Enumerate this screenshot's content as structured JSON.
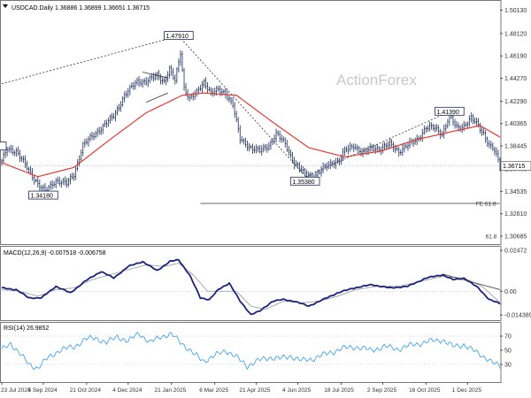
{
  "chart_data": [
    {
      "type": "line",
      "panel": "price",
      "header": "USDCAD.Daily  1.36886 1.36899 1.36651 1.36715",
      "watermark": "ActionForex",
      "ylim": [
        1.3,
        1.51
      ],
      "y_ticks": [
        1.5013,
        1.4812,
        1.4619,
        1.4427,
        1.4229,
        1.4037,
        1.3845,
        1.3646,
        1.3454,
        1.3261,
        1.3069
      ],
      "y_tick_labels": [
        "1.50130",
        "1.48120",
        "1.46190",
        "1.44270",
        "1.42290",
        "1.40365",
        "1.38445",
        "1.36460",
        "1.34535",
        "1.32610",
        "1.30685"
      ],
      "current_price": 1.36715,
      "current_price_label": "1.36715",
      "x_ticks": [
        "23 Jul 2024",
        "5 Sep 2024",
        "21 Oct 2024",
        "4 Dec 2024",
        "21 Jan 2025",
        "6 Mar 2025",
        "21 Apr 2025",
        "4 Jun 2025",
        "18 Jul 2025",
        "2 Sep 2025",
        "16 Oct 2025",
        "1 Dec 2025"
      ],
      "close_anchors": [
        {
          "i": 0,
          "v": 1.371
        },
        {
          "i": 3,
          "v": 1.382
        },
        {
          "i": 8,
          "v": 1.38
        },
        {
          "i": 13,
          "v": 1.368
        },
        {
          "i": 20,
          "v": 1.352
        },
        {
          "i": 24,
          "v": 1.345
        },
        {
          "i": 30,
          "v": 1.355
        },
        {
          "i": 36,
          "v": 1.352
        },
        {
          "i": 40,
          "v": 1.36
        },
        {
          "i": 45,
          "v": 1.385
        },
        {
          "i": 55,
          "v": 1.4
        },
        {
          "i": 62,
          "v": 1.41
        },
        {
          "i": 68,
          "v": 1.428
        },
        {
          "i": 75,
          "v": 1.44
        },
        {
          "i": 80,
          "v": 1.44
        },
        {
          "i": 86,
          "v": 1.445
        },
        {
          "i": 90,
          "v": 1.44
        },
        {
          "i": 93,
          "v": 1.45
        },
        {
          "i": 96,
          "v": 1.44
        },
        {
          "i": 99,
          "v": 1.465
        },
        {
          "i": 101,
          "v": 1.435
        },
        {
          "i": 104,
          "v": 1.425
        },
        {
          "i": 108,
          "v": 1.43
        },
        {
          "i": 112,
          "v": 1.44
        },
        {
          "i": 116,
          "v": 1.43
        },
        {
          "i": 120,
          "v": 1.432
        },
        {
          "i": 124,
          "v": 1.43
        },
        {
          "i": 128,
          "v": 1.42
        },
        {
          "i": 132,
          "v": 1.39
        },
        {
          "i": 138,
          "v": 1.383
        },
        {
          "i": 143,
          "v": 1.38
        },
        {
          "i": 148,
          "v": 1.385
        },
        {
          "i": 152,
          "v": 1.395
        },
        {
          "i": 157,
          "v": 1.386
        },
        {
          "i": 162,
          "v": 1.37
        },
        {
          "i": 168,
          "v": 1.36
        },
        {
          "i": 173,
          "v": 1.358
        },
        {
          "i": 178,
          "v": 1.365
        },
        {
          "i": 183,
          "v": 1.37
        },
        {
          "i": 187,
          "v": 1.372
        },
        {
          "i": 190,
          "v": 1.38
        },
        {
          "i": 195,
          "v": 1.385
        },
        {
          "i": 200,
          "v": 1.378
        },
        {
          "i": 205,
          "v": 1.383
        },
        {
          "i": 210,
          "v": 1.382
        },
        {
          "i": 215,
          "v": 1.386
        },
        {
          "i": 220,
          "v": 1.38
        },
        {
          "i": 225,
          "v": 1.385
        },
        {
          "i": 230,
          "v": 1.39
        },
        {
          "i": 235,
          "v": 1.4
        },
        {
          "i": 240,
          "v": 1.4
        },
        {
          "i": 244,
          "v": 1.395
        },
        {
          "i": 248,
          "v": 1.41
        },
        {
          "i": 252,
          "v": 1.4
        },
        {
          "i": 256,
          "v": 1.402
        },
        {
          "i": 260,
          "v": 1.408
        },
        {
          "i": 264,
          "v": 1.402
        },
        {
          "i": 267,
          "v": 1.395
        },
        {
          "i": 270,
          "v": 1.385
        },
        {
          "i": 273,
          "v": 1.38
        },
        {
          "i": 276,
          "v": 1.3672
        }
      ],
      "series": [
        {
          "name": "SMA",
          "color": "#e53935",
          "anchors": [
            {
              "i": 0,
              "v": 1.37
            },
            {
              "i": 20,
              "v": 1.358
            },
            {
              "i": 40,
              "v": 1.366
            },
            {
              "i": 60,
              "v": 1.39
            },
            {
              "i": 80,
              "v": 1.413
            },
            {
              "i": 100,
              "v": 1.428
            },
            {
              "i": 112,
              "v": 1.43
            },
            {
              "i": 130,
              "v": 1.428
            },
            {
              "i": 150,
              "v": 1.405
            },
            {
              "i": 170,
              "v": 1.383
            },
            {
              "i": 190,
              "v": 1.375
            },
            {
              "i": 210,
              "v": 1.38
            },
            {
              "i": 230,
              "v": 1.39
            },
            {
              "i": 250,
              "v": 1.397
            },
            {
              "i": 265,
              "v": 1.402
            },
            {
              "i": 276,
              "v": 1.392
            }
          ]
        }
      ],
      "annotations": [
        {
          "text": "1.47910",
          "i": 98,
          "v": 1.4791
        },
        {
          "text": "1.34180",
          "i": 23,
          "v": 1.3418
        },
        {
          "text": "1.35380",
          "i": 168,
          "v": 1.3538
        },
        {
          "text": "1.41390",
          "i": 248,
          "v": 1.4139
        },
        {
          "text": "FE 61.8",
          "v": 1.335
        },
        {
          "text": "61.8",
          "v": 1.3069
        }
      ],
      "trendlines": [
        {
          "from": {
            "i": 0,
            "v": 1.438
          },
          "to": {
            "i": 98,
            "v": 1.479
          },
          "style": "dashed"
        },
        {
          "from": {
            "i": 98,
            "v": 1.479
          },
          "to": {
            "i": 172,
            "v": 1.352
          },
          "style": "dashed"
        },
        {
          "from": {
            "i": 168,
            "v": 1.358
          },
          "to": {
            "i": 248,
            "v": 1.4139
          },
          "style": "dashed"
        },
        {
          "from": {
            "i": 78,
            "v": 1.448
          },
          "to": {
            "i": 92,
            "v": 1.443
          },
          "style": "solid"
        },
        {
          "from": {
            "i": 80,
            "v": 1.422
          },
          "to": {
            "i": 92,
            "v": 1.43
          },
          "style": "solid"
        }
      ],
      "horizontal_levels": [
        {
          "v": 1.335,
          "label": "FE 61.8"
        },
        {
          "v": 1.3672,
          "label": "",
          "style": "dotted"
        }
      ]
    },
    {
      "type": "line",
      "panel": "macd",
      "header": "MACD(12,26,9) -0.007518 -0.006758",
      "ylim": [
        -0.0175,
        0.0275
      ],
      "y_ticks": [
        0.02472,
        0.0,
        -0.014389
      ],
      "y_tick_labels": [
        "0.02472",
        "0.00",
        "-0.014389"
      ],
      "series": [
        {
          "name": "MACD",
          "color": "#1a237e",
          "anchors": [
            {
              "i": 0,
              "v": 0.002
            },
            {
              "i": 8,
              "v": 0.001
            },
            {
              "i": 15,
              "v": -0.004
            },
            {
              "i": 22,
              "v": -0.004
            },
            {
              "i": 30,
              "v": 0.003
            },
            {
              "i": 38,
              "v": -0.001
            },
            {
              "i": 46,
              "v": 0.006
            },
            {
              "i": 55,
              "v": 0.012
            },
            {
              "i": 62,
              "v": 0.008
            },
            {
              "i": 70,
              "v": 0.015
            },
            {
              "i": 78,
              "v": 0.018
            },
            {
              "i": 86,
              "v": 0.0125
            },
            {
              "i": 93,
              "v": 0.018
            },
            {
              "i": 98,
              "v": 0.019
            },
            {
              "i": 104,
              "v": 0.01
            },
            {
              "i": 110,
              "v": -0.004
            },
            {
              "i": 115,
              "v": -0.005
            },
            {
              "i": 120,
              "v": 0.001
            },
            {
              "i": 126,
              "v": 0.005
            },
            {
              "i": 132,
              "v": -0.006
            },
            {
              "i": 138,
              "v": -0.014
            },
            {
              "i": 143,
              "v": -0.012
            },
            {
              "i": 150,
              "v": -0.006
            },
            {
              "i": 156,
              "v": -0.005
            },
            {
              "i": 162,
              "v": -0.006
            },
            {
              "i": 170,
              "v": -0.009
            },
            {
              "i": 178,
              "v": -0.005
            },
            {
              "i": 186,
              "v": -0.001
            },
            {
              "i": 195,
              "v": 0.002
            },
            {
              "i": 205,
              "v": 0.004
            },
            {
              "i": 215,
              "v": 0.002
            },
            {
              "i": 225,
              "v": 0.003
            },
            {
              "i": 235,
              "v": 0.008
            },
            {
              "i": 244,
              "v": 0.01
            },
            {
              "i": 250,
              "v": 0.007
            },
            {
              "i": 256,
              "v": 0.008
            },
            {
              "i": 264,
              "v": 0.002
            },
            {
              "i": 270,
              "v": -0.005
            },
            {
              "i": 276,
              "v": -0.0075
            }
          ]
        },
        {
          "name": "Signal",
          "color": "#a0a0a0",
          "anchors": [
            {
              "i": 0,
              "v": 0.001
            },
            {
              "i": 10,
              "v": 0.0
            },
            {
              "i": 20,
              "v": -0.003
            },
            {
              "i": 30,
              "v": 0.001
            },
            {
              "i": 40,
              "v": 0.002
            },
            {
              "i": 50,
              "v": 0.007
            },
            {
              "i": 60,
              "v": 0.01
            },
            {
              "i": 70,
              "v": 0.013
            },
            {
              "i": 80,
              "v": 0.016
            },
            {
              "i": 90,
              "v": 0.015
            },
            {
              "i": 98,
              "v": 0.017
            },
            {
              "i": 106,
              "v": 0.01
            },
            {
              "i": 114,
              "v": 0.0
            },
            {
              "i": 122,
              "v": 0.0
            },
            {
              "i": 130,
              "v": 0.0
            },
            {
              "i": 138,
              "v": -0.009
            },
            {
              "i": 146,
              "v": -0.011
            },
            {
              "i": 156,
              "v": -0.006
            },
            {
              "i": 166,
              "v": -0.007
            },
            {
              "i": 176,
              "v": -0.006
            },
            {
              "i": 186,
              "v": -0.003
            },
            {
              "i": 196,
              "v": 0.001
            },
            {
              "i": 208,
              "v": 0.003
            },
            {
              "i": 220,
              "v": 0.003
            },
            {
              "i": 232,
              "v": 0.006
            },
            {
              "i": 244,
              "v": 0.009
            },
            {
              "i": 256,
              "v": 0.008
            },
            {
              "i": 266,
              "v": 0.003
            },
            {
              "i": 276,
              "v": -0.0068
            }
          ]
        }
      ],
      "trendlines": [
        {
          "from": {
            "i": 244,
            "v": 0.0105
          },
          "to": {
            "i": 276,
            "v": 0.001
          },
          "style": "solid"
        }
      ]
    },
    {
      "type": "line",
      "panel": "rsi",
      "header": "RSI(14) 26.9852",
      "ylim": [
        5,
        90
      ],
      "y_ticks": [
        70,
        50,
        30
      ],
      "y_tick_labels": [
        "70",
        "50",
        "30"
      ],
      "series": [
        {
          "name": "RSI",
          "color": "#42a5f5",
          "anchors": [
            {
              "i": 0,
              "v": 50
            },
            {
              "i": 5,
              "v": 60
            },
            {
              "i": 10,
              "v": 45
            },
            {
              "i": 15,
              "v": 30
            },
            {
              "i": 20,
              "v": 25
            },
            {
              "i": 26,
              "v": 40
            },
            {
              "i": 32,
              "v": 50
            },
            {
              "i": 40,
              "v": 55
            },
            {
              "i": 46,
              "v": 65
            },
            {
              "i": 52,
              "v": 68
            },
            {
              "i": 58,
              "v": 60
            },
            {
              "i": 64,
              "v": 70
            },
            {
              "i": 70,
              "v": 62
            },
            {
              "i": 76,
              "v": 75
            },
            {
              "i": 82,
              "v": 60
            },
            {
              "i": 88,
              "v": 70
            },
            {
              "i": 94,
              "v": 72
            },
            {
              "i": 100,
              "v": 60
            },
            {
              "i": 106,
              "v": 45
            },
            {
              "i": 112,
              "v": 35
            },
            {
              "i": 118,
              "v": 42
            },
            {
              "i": 124,
              "v": 50
            },
            {
              "i": 130,
              "v": 40
            },
            {
              "i": 136,
              "v": 28
            },
            {
              "i": 142,
              "v": 35
            },
            {
              "i": 148,
              "v": 40
            },
            {
              "i": 154,
              "v": 38
            },
            {
              "i": 160,
              "v": 42
            },
            {
              "i": 166,
              "v": 35
            },
            {
              "i": 172,
              "v": 38
            },
            {
              "i": 180,
              "v": 45
            },
            {
              "i": 188,
              "v": 52
            },
            {
              "i": 196,
              "v": 55
            },
            {
              "i": 204,
              "v": 50
            },
            {
              "i": 212,
              "v": 55
            },
            {
              "i": 220,
              "v": 52
            },
            {
              "i": 228,
              "v": 58
            },
            {
              "i": 236,
              "v": 62
            },
            {
              "i": 244,
              "v": 65
            },
            {
              "i": 250,
              "v": 55
            },
            {
              "i": 256,
              "v": 58
            },
            {
              "i": 262,
              "v": 48
            },
            {
              "i": 268,
              "v": 40
            },
            {
              "i": 272,
              "v": 32
            },
            {
              "i": 276,
              "v": 27
            }
          ]
        }
      ]
    }
  ]
}
